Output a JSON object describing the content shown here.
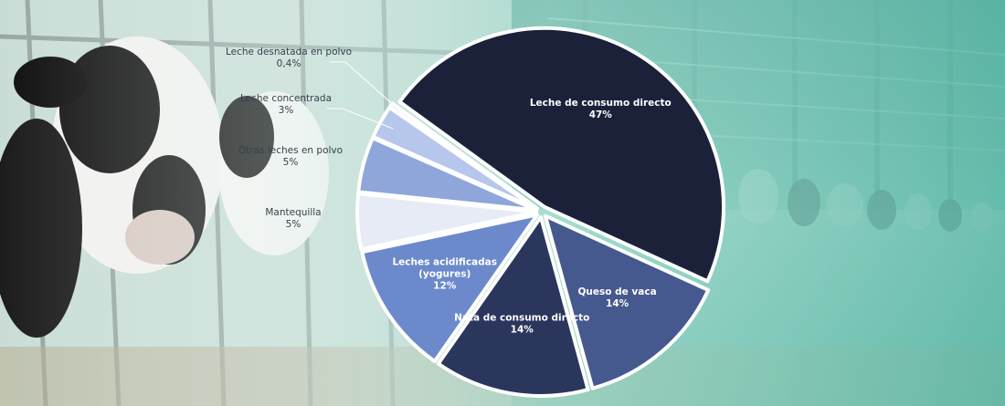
{
  "chart_data": {
    "type": "pie",
    "title": "",
    "slices": [
      {
        "label": "Leche de consumo directo",
        "value": 47,
        "value_label": "47%",
        "color": "#1a2139"
      },
      {
        "label": "Queso de vaca",
        "value": 14,
        "value_label": "14%",
        "color": "#46598f"
      },
      {
        "label": "Nata de consumo directo",
        "value": 14,
        "value_label": "14%",
        "color": "#2b365d"
      },
      {
        "label": "Leches acidificadas (yogures)",
        "label_lines": [
          "Leches acidificadas",
          "(yogures)"
        ],
        "value": 12,
        "value_label": "12%",
        "color": "#6c8acb"
      },
      {
        "label": "Mantequilla",
        "value": 5,
        "value_label": "5%",
        "color": "#e7ebf6"
      },
      {
        "label": "Otras leches en polvo",
        "value": 5,
        "value_label": "5%",
        "color": "#8ea6da"
      },
      {
        "label": "Leche concentrada",
        "value": 3,
        "value_label": "3%",
        "color": "#b7c6eb"
      },
      {
        "label": "Leche desnatada en polvo",
        "value": 0.4,
        "value_label": "0,4%",
        "color": "#d3dcf1"
      }
    ]
  },
  "background": {
    "photo_subject": "dairy-cows-in-barn",
    "tint_color": "#8ed7c6",
    "accent_color": "#c9a25a"
  }
}
